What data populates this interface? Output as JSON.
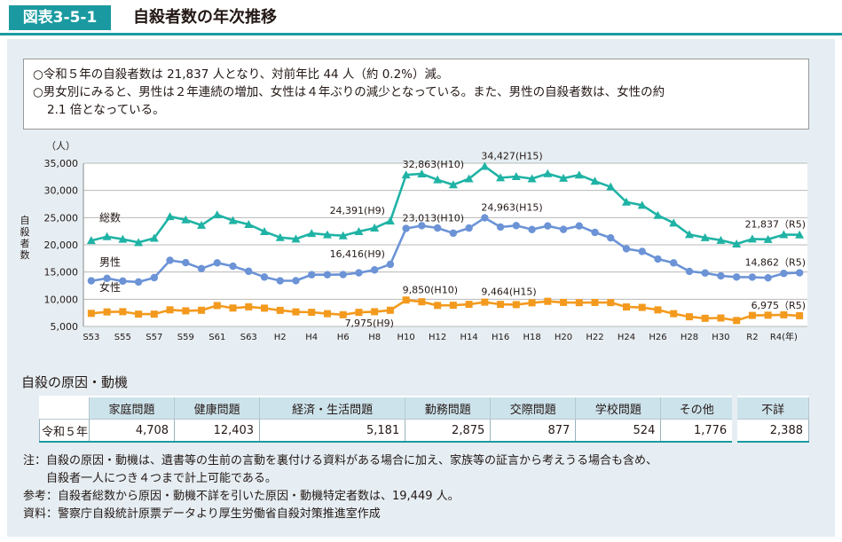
{
  "header": {
    "figure_label": "図表3-5-1",
    "title": "自殺者数の年次推移"
  },
  "summary": {
    "line1": "○令和５年の自殺者数は 21,837 人となり、対前年比 44 人（約 0.2%）減。",
    "line2": "○男女別にみると、男性は２年連続の増加、女性は４年ぶりの減少となっている。また、男性の自殺者数は、女性の約",
    "line3": "2.1 倍となっている。"
  },
  "chart_data": {
    "type": "line",
    "unit": "（人）",
    "ylabel": "自殺者数",
    "ylim": [
      5000,
      35000
    ],
    "yticks": [
      "35,000",
      "30,000",
      "25,000",
      "20,000",
      "15,000",
      "10,000",
      "5,000"
    ],
    "ytick_values": [
      35000,
      30000,
      25000,
      20000,
      15000,
      10000,
      5000
    ],
    "x_tick_labels": [
      "S53",
      "S55",
      "S57",
      "S59",
      "S61",
      "S63",
      "H2",
      "H4",
      "H6",
      "H8",
      "H10",
      "H12",
      "H14",
      "H16",
      "H18",
      "H20",
      "H22",
      "H24",
      "H26",
      "H28",
      "H30",
      "R2",
      "R4(年)"
    ],
    "x_tick_every": 2,
    "years": 46,
    "series": [
      {
        "name": "総数",
        "color": "#1fb3a5",
        "marker": "triangle",
        "values": [
          20788,
          21503,
          21048,
          20434,
          21228,
          25202,
          24596,
          23599,
          25524,
          24460,
          23742,
          22436,
          21346,
          21084,
          22104,
          21851,
          21679,
          22445,
          23104,
          24391,
          32863,
          33048,
          31957,
          31042,
          32143,
          34427,
          32325,
          32552,
          32155,
          33093,
          32249,
          32845,
          31690,
          30651,
          27858,
          27283,
          25427,
          24025,
          21897,
          21321,
          20840,
          20169,
          21081,
          21007,
          21881,
          21837
        ]
      },
      {
        "name": "男性",
        "color": "#6b93d6",
        "marker": "circle",
        "values": [
          13386,
          13837,
          13336,
          13173,
          13966,
          17152,
          16728,
          15629,
          16684,
          16078,
          15133,
          14074,
          13393,
          13405,
          14501,
          14508,
          14532,
          14853,
          15393,
          16416,
          23013,
          23512,
          23093,
          22144,
          23080,
          24963,
          23272,
          23540,
          22813,
          23478,
          22831,
          23472,
          22283,
          21270,
          19273,
          18787,
          17386,
          16681,
          15121,
          14826,
          14290,
          14078,
          14055,
          13939,
          14746,
          14862
        ]
      },
      {
        "name": "女性",
        "color": "#f39a1e",
        "marker": "square",
        "values": [
          7402,
          7666,
          7712,
          7261,
          7262,
          8050,
          7868,
          7970,
          8840,
          8382,
          8609,
          8362,
          7953,
          7679,
          7603,
          7343,
          7147,
          7592,
          7711,
          7975,
          9850,
          9536,
          8864,
          8898,
          9063,
          9464,
          9053,
          9012,
          9342,
          9615,
          9418,
          9373,
          9407,
          9381,
          8585,
          8496,
          8041,
          7344,
          6776,
          6495,
          6550,
          6091,
          7026,
          7068,
          7135,
          6975
        ]
      }
    ],
    "series_labels": {
      "total": "総数",
      "male": "男性",
      "female": "女性"
    },
    "annotations": [
      {
        "text": "32,863(H10)",
        "series": 0,
        "index": 20
      },
      {
        "text": "34,427(H15)",
        "series": 0,
        "index": 25
      },
      {
        "text": "24,391(H9)",
        "series": 0,
        "index": 19
      },
      {
        "text": "21,837（R5)",
        "series": 0,
        "index": 45
      },
      {
        "text": "23,013(H10)",
        "series": 1,
        "index": 20
      },
      {
        "text": "24,963(H15)",
        "series": 1,
        "index": 25
      },
      {
        "text": "16,416(H9)",
        "series": 1,
        "index": 19
      },
      {
        "text": "14,862（R5)",
        "series": 1,
        "index": 45
      },
      {
        "text": "9,850(H10)",
        "series": 2,
        "index": 20
      },
      {
        "text": "9,464(H15)",
        "series": 2,
        "index": 25
      },
      {
        "text": "7,975(H9)",
        "series": 2,
        "index": 19
      },
      {
        "text": "6,975（R5)",
        "series": 2,
        "index": 45
      }
    ]
  },
  "causes": {
    "section_title": "自殺の原因・動機",
    "headers": [
      "家庭問題",
      "健康問題",
      "経済・生活問題",
      "勤務問題",
      "交際問題",
      "学校問題",
      "その他",
      "不詳"
    ],
    "row_label": "令和５年",
    "values": [
      "4,708",
      "12,403",
      "5,181",
      "2,875",
      "877",
      "524",
      "1,776",
      "2,388"
    ]
  },
  "notes": {
    "note1": "注：自殺の原因・動機は、遺書等の生前の言動を裏付ける資料がある場合に加え、家族等の証言から考えうる場合も含め、",
    "note1_cont": "自殺者一人につき４つまで計上可能である。",
    "note2": "参考：自殺者総数から原因・動機不詳を引いた原因・動機特定者数は、19,449 人。",
    "note3": "資料：警察庁自殺統計原票データより厚生労働省自殺対策推進室作成"
  },
  "colors": {
    "accent": "#1a9aa0",
    "panel": "#e6eef3",
    "table_head": "#cde3ec"
  }
}
